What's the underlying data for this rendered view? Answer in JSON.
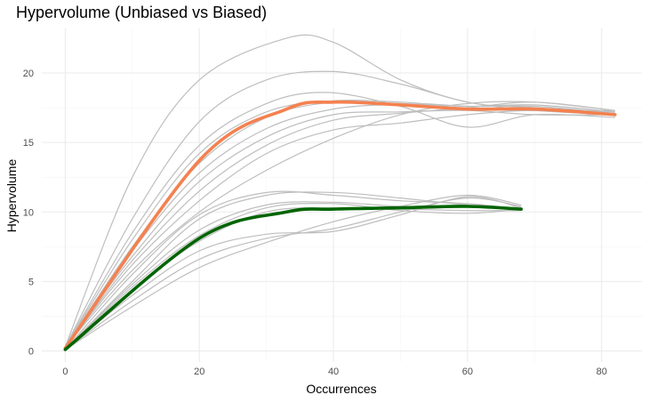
{
  "chart_data": {
    "type": "line",
    "title": "Hypervolume (Unbiased vs Biased)",
    "xlabel": "Occurrences",
    "ylabel": "Hypervolume",
    "xlim": [
      -3.5,
      86
    ],
    "ylim": [
      -0.8,
      23.2
    ],
    "x_ticks": [
      0,
      20,
      40,
      60,
      80
    ],
    "y_ticks": [
      0,
      5,
      10,
      15,
      20
    ],
    "grid": true,
    "legend": "none",
    "colors": {
      "background_lines": "#bebebe",
      "unbiased_mean": "#f4814f",
      "biased_mean": "#006400",
      "grid_major": "#ebebeb",
      "grid_minor": "#f5f5f5"
    },
    "background_series": [
      {
        "x": [
          0,
          10,
          20,
          33,
          40,
          50,
          60,
          70,
          82
        ],
        "y": [
          0.3,
          12.5,
          19.5,
          22.5,
          22.2,
          19.5,
          17.9,
          17.5,
          17.2
        ]
      },
      {
        "x": [
          0,
          10,
          20,
          30,
          40,
          50,
          60,
          70,
          82
        ],
        "y": [
          0.3,
          9.5,
          16.5,
          19.5,
          20.1,
          19.2,
          17.9,
          17.3,
          17.0
        ]
      },
      {
        "x": [
          0,
          10,
          20,
          30,
          39,
          50,
          60,
          70,
          82
        ],
        "y": [
          0.3,
          8.5,
          14.8,
          17.8,
          18.6,
          17.6,
          16.1,
          17.0,
          16.8
        ]
      },
      {
        "x": [
          0,
          10,
          20,
          30,
          40,
          50,
          60,
          70,
          82
        ],
        "y": [
          0.3,
          8.0,
          14.2,
          17.2,
          18.0,
          17.9,
          17.6,
          17.6,
          17.1
        ]
      },
      {
        "x": [
          0,
          10,
          20,
          30,
          40,
          50,
          60,
          70,
          82
        ],
        "y": [
          0.3,
          7.5,
          13.5,
          16.8,
          17.9,
          17.8,
          17.6,
          17.7,
          17.2
        ]
      },
      {
        "x": [
          0,
          10,
          20,
          30,
          40,
          50,
          60,
          70,
          82
        ],
        "y": [
          0.3,
          7.2,
          12.8,
          16.0,
          17.4,
          17.7,
          17.4,
          17.3,
          17.3
        ]
      },
      {
        "x": [
          0,
          10,
          20,
          30,
          40,
          50,
          60,
          70,
          82
        ],
        "y": [
          0.3,
          6.8,
          12.2,
          15.4,
          17.0,
          17.2,
          17.3,
          17.0,
          17.0
        ]
      },
      {
        "x": [
          0,
          10,
          20,
          30,
          40,
          50,
          60,
          70,
          82
        ],
        "y": [
          0.3,
          6.5,
          11.5,
          14.8,
          16.6,
          17.1,
          17.5,
          17.9,
          17.3
        ]
      },
      {
        "x": [
          0,
          10,
          20,
          30,
          40,
          50,
          60,
          70,
          82
        ],
        "y": [
          0.3,
          6.2,
          10.8,
          14.2,
          15.9,
          16.4,
          17.0,
          17.3,
          17.1
        ]
      },
      {
        "x": [
          0,
          10,
          20,
          30,
          40,
          50,
          60,
          70,
          82
        ],
        "y": [
          0.3,
          5.8,
          10.0,
          13.0,
          15.3,
          17.0,
          17.8,
          17.9,
          17.3
        ]
      },
      {
        "x": [
          0,
          10,
          20,
          30,
          40,
          50,
          60,
          68
        ],
        "y": [
          0.1,
          5.5,
          9.8,
          11.4,
          11.2,
          10.8,
          10.6,
          10.2
        ]
      },
      {
        "x": [
          0,
          10,
          20,
          30,
          40,
          50,
          60,
          68
        ],
        "y": [
          0.1,
          5.0,
          9.5,
          11.2,
          11.4,
          11.0,
          10.5,
          10.3
        ]
      },
      {
        "x": [
          0,
          10,
          20,
          30,
          40,
          50,
          60,
          68
        ],
        "y": [
          0.1,
          4.8,
          8.7,
          10.5,
          10.7,
          10.4,
          10.4,
          10.2
        ]
      },
      {
        "x": [
          0,
          10,
          20,
          30,
          40,
          50,
          60,
          68
        ],
        "y": [
          0.1,
          4.6,
          8.3,
          10.3,
          10.6,
          10.1,
          9.9,
          10.2
        ]
      },
      {
        "x": [
          0,
          10,
          20,
          30,
          40,
          50,
          60,
          68
        ],
        "y": [
          0.1,
          4.4,
          7.9,
          10.0,
          10.3,
          10.2,
          10.1,
          10.1
        ]
      },
      {
        "x": [
          0,
          10,
          20,
          30,
          40,
          50,
          60,
          68
        ],
        "y": [
          0.1,
          4.0,
          7.2,
          8.4,
          8.6,
          9.8,
          11.1,
          10.3
        ]
      },
      {
        "x": [
          0,
          10,
          20,
          30,
          40,
          50,
          60,
          68
        ],
        "y": [
          0.1,
          3.6,
          6.6,
          8.1,
          8.8,
          10.0,
          11.0,
          10.4
        ]
      },
      {
        "x": [
          0,
          10,
          20,
          30,
          40,
          50,
          60,
          68
        ],
        "y": [
          0.1,
          3.2,
          6.0,
          7.8,
          9.3,
          10.4,
          11.2,
          10.5
        ]
      }
    ],
    "series": [
      {
        "x": [
          0,
          20,
          33,
          40,
          50,
          60,
          70,
          82
        ],
        "y": [
          0.2,
          13.7,
          17.4,
          17.9,
          17.7,
          17.4,
          17.4,
          17.0
        ]
      },
      {
        "x": [
          0,
          20,
          33,
          40,
          50,
          60,
          68
        ],
        "y": [
          0.1,
          8.1,
          10.0,
          10.2,
          10.3,
          10.4,
          10.2
        ]
      }
    ]
  }
}
